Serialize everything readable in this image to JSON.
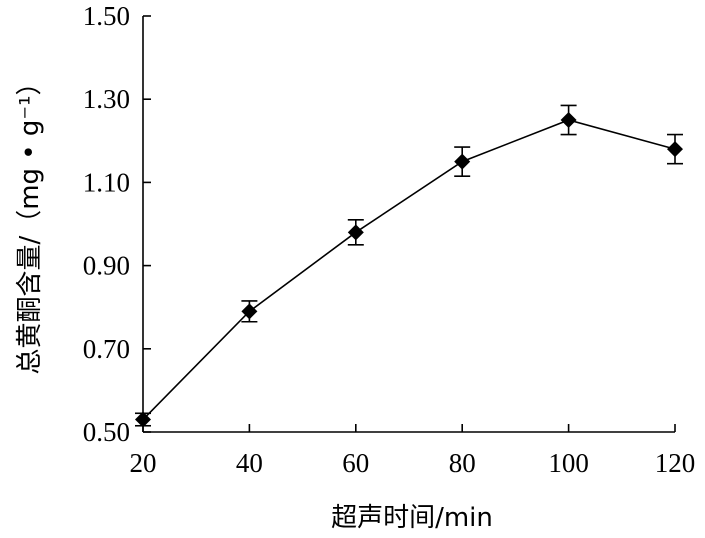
{
  "chart_data": {
    "type": "line",
    "xlabel": "超声时间/min",
    "ylabel": "总黄酮含量/（mg • g⁻¹）",
    "x": [
      20,
      40,
      60,
      80,
      100,
      120
    ],
    "y": [
      0.53,
      0.79,
      0.98,
      1.15,
      1.25,
      1.18
    ],
    "yerr": [
      0.015,
      0.025,
      0.03,
      0.035,
      0.035,
      0.035
    ],
    "xticks": [
      "20",
      "40",
      "60",
      "80",
      "100",
      "120"
    ],
    "yticks": [
      "0.50",
      "0.70",
      "0.90",
      "1.10",
      "1.30",
      "1.50"
    ],
    "xlim": [
      20,
      120
    ],
    "ylim": [
      0.5,
      1.5
    ],
    "marker": "diamond",
    "grid": false,
    "colors": {
      "line": "#000000",
      "marker": "#000000"
    }
  }
}
